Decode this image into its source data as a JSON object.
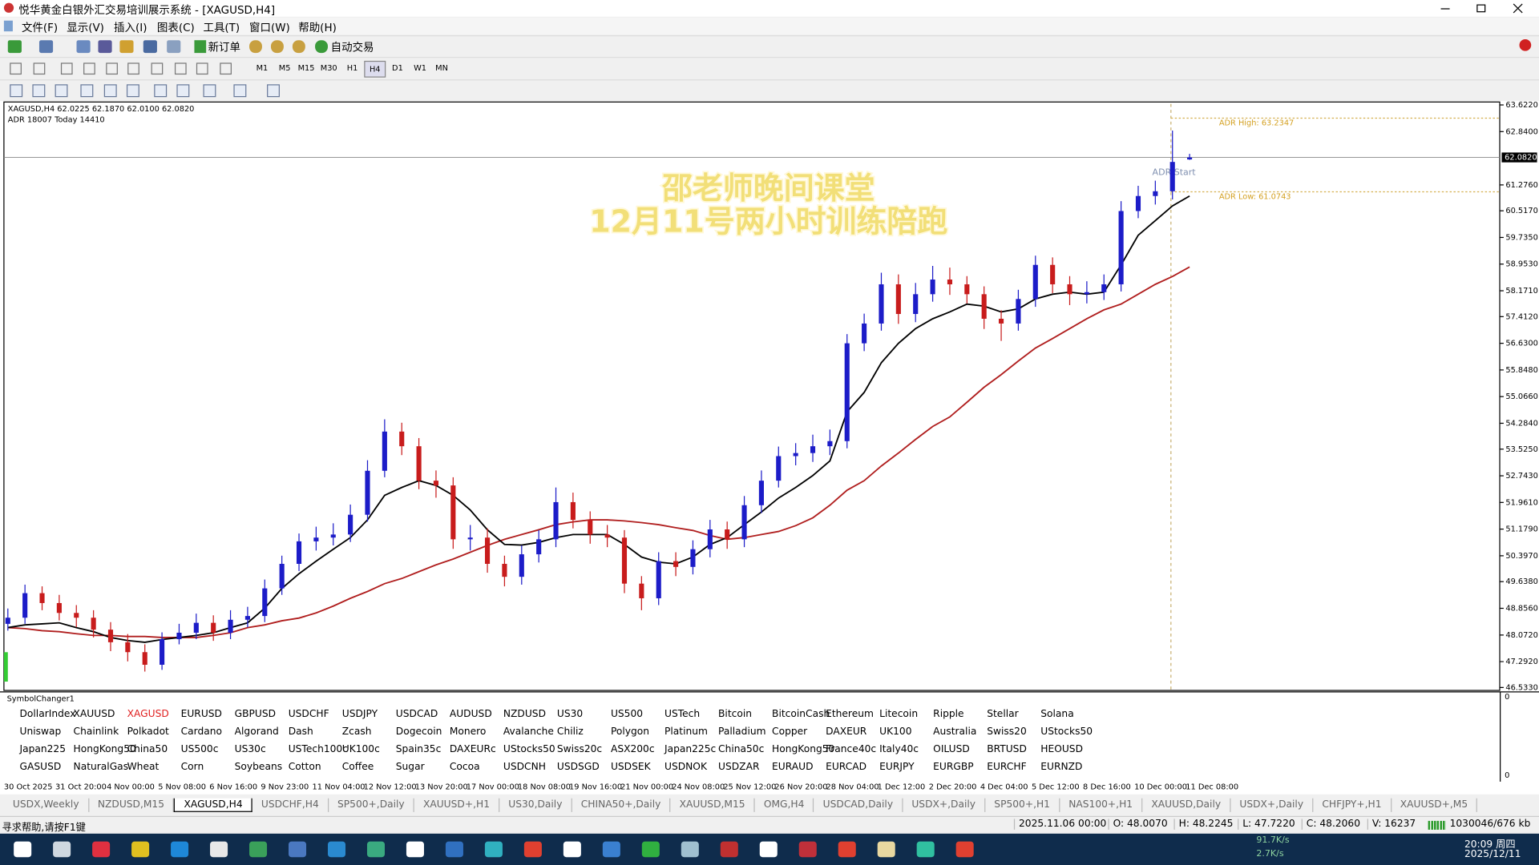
{
  "window": {
    "title": "悦华黄金白银外汇交易培训展示系统 - [XAGUSD,H4]",
    "menu": [
      "文件(F)",
      "显示(V)",
      "插入(I)",
      "图表(C)",
      "工具(T)",
      "窗口(W)",
      "帮助(H)"
    ],
    "toolbar": {
      "new_order": "新订单",
      "auto_trade": "自动交易",
      "timeframes": [
        "M1",
        "M5",
        "M15",
        "M30",
        "H1",
        "H4",
        "D1",
        "W1",
        "MN"
      ],
      "active_timeframe": 5
    }
  },
  "chart_data": {
    "type": "candlestick",
    "symbol_info": "XAGUSD,H4  62.0225 62.1870 62.0100 62.0820",
    "indicator_info": "ADR 18007  Today 14410",
    "overlay_title": [
      "邵老师晚间课堂",
      "12月11号两小时训练陪跑"
    ],
    "up_color": "#1c1cc8",
    "down_color": "#c81c1c",
    "open": [
      48.4,
      48.58,
      49.3,
      49.01,
      48.72,
      48.58,
      48.23,
      47.86,
      47.57,
      47.2,
      47.95,
      48.14,
      48.43,
      48.14,
      48.52,
      48.63,
      49.44,
      50.16,
      50.82,
      50.93,
      51.02,
      51.6,
      52.89,
      54.04,
      53.61,
      52.6,
      52.46,
      50.88,
      50.93,
      50.16,
      49.78,
      50.44,
      50.88,
      51.97,
      51.45,
      51.02,
      50.93,
      49.58,
      49.15,
      50.24,
      50.07,
      50.59,
      51.17,
      50.88,
      51.88,
      52.6,
      53.32,
      53.41,
      53.61,
      53.76,
      56.63,
      57.21,
      58.36,
      57.49,
      58.07,
      58.5,
      58.36,
      58.07,
      57.35,
      57.21,
      57.93,
      58.93,
      58.36,
      58.07,
      58.13,
      58.36,
      60.51,
      60.95,
      61.09,
      62.0225
    ],
    "high": [
      48.85,
      49.55,
      49.5,
      49.25,
      48.95,
      48.8,
      48.45,
      48.1,
      47.8,
      48.15,
      48.4,
      48.7,
      48.65,
      48.8,
      48.9,
      49.7,
      50.4,
      51.05,
      51.25,
      51.35,
      51.9,
      53.2,
      54.4,
      54.3,
      53.85,
      52.9,
      52.7,
      51.3,
      51.2,
      50.4,
      50.7,
      51.15,
      52.4,
      52.25,
      51.7,
      51.3,
      51.15,
      49.8,
      50.5,
      50.5,
      50.85,
      51.45,
      51.4,
      52.15,
      52.9,
      53.6,
      53.7,
      53.95,
      54.1,
      56.9,
      57.5,
      58.7,
      58.65,
      58.4,
      58.9,
      58.85,
      58.6,
      58.3,
      57.6,
      58.2,
      59.2,
      59.15,
      58.6,
      58.45,
      58.65,
      60.8,
      61.25,
      61.4,
      62.87,
      62.187
    ],
    "low": [
      48.2,
      48.4,
      48.8,
      48.5,
      48.3,
      48.0,
      47.6,
      47.3,
      47.0,
      47.05,
      47.8,
      47.95,
      47.9,
      47.95,
      48.3,
      48.45,
      49.25,
      49.95,
      50.55,
      50.7,
      50.8,
      51.4,
      52.7,
      53.35,
      52.35,
      52.1,
      50.6,
      50.55,
      49.9,
      49.5,
      49.55,
      50.2,
      50.65,
      51.2,
      50.75,
      50.65,
      49.3,
      48.8,
      48.95,
      49.8,
      49.85,
      50.35,
      50.6,
      50.65,
      51.65,
      52.4,
      53.05,
      53.15,
      53.35,
      53.55,
      56.4,
      57.0,
      57.2,
      57.25,
      57.85,
      58.05,
      57.8,
      57.05,
      56.7,
      57.0,
      57.7,
      58.1,
      57.75,
      57.8,
      57.9,
      58.15,
      60.3,
      60.7,
      60.85,
      62.01
    ],
    "close": [
      48.58,
      49.3,
      49.01,
      48.72,
      48.58,
      48.23,
      47.86,
      47.57,
      47.2,
      47.95,
      48.14,
      48.43,
      48.14,
      48.52,
      48.63,
      49.44,
      50.16,
      50.82,
      50.93,
      51.02,
      51.6,
      52.89,
      54.04,
      53.61,
      52.6,
      52.46,
      50.88,
      50.93,
      50.16,
      49.78,
      50.44,
      50.88,
      51.97,
      51.45,
      51.02,
      50.93,
      49.58,
      49.15,
      50.24,
      50.07,
      50.59,
      51.17,
      50.88,
      51.88,
      52.6,
      53.32,
      53.41,
      53.61,
      53.76,
      56.63,
      57.21,
      58.36,
      57.49,
      58.07,
      58.5,
      58.36,
      58.07,
      57.35,
      57.21,
      57.93,
      58.93,
      58.36,
      58.07,
      58.13,
      58.36,
      60.51,
      60.95,
      61.09,
      61.95,
      62.082
    ],
    "ma_fast": {
      "color": "#000000",
      "values": [
        48.29,
        48.37,
        48.4,
        48.43,
        48.29,
        48.17,
        48.0,
        47.91,
        47.86,
        47.94,
        48.0,
        48.06,
        48.14,
        48.29,
        48.43,
        48.86,
        49.44,
        49.87,
        50.24,
        50.59,
        50.93,
        51.45,
        52.17,
        52.4,
        52.6,
        52.46,
        52.17,
        51.74,
        51.16,
        50.73,
        50.71,
        50.79,
        50.93,
        51.02,
        51.02,
        51.02,
        50.73,
        50.36,
        50.21,
        50.16,
        50.36,
        50.73,
        50.93,
        51.31,
        51.68,
        52.09,
        52.4,
        52.75,
        53.18,
        54.62,
        55.19,
        56.06,
        56.63,
        57.06,
        57.35,
        57.55,
        57.78,
        57.72,
        57.55,
        57.64,
        57.93,
        58.07,
        58.13,
        58.07,
        58.13,
        58.93,
        59.8,
        60.23,
        60.66,
        60.95
      ]
    },
    "ma_slow": {
      "color": "#b01e1e",
      "values": [
        48.29,
        48.26,
        48.2,
        48.17,
        48.11,
        48.06,
        48.06,
        48.03,
        48.03,
        48.0,
        48.0,
        48.0,
        48.06,
        48.14,
        48.29,
        48.37,
        48.49,
        48.57,
        48.72,
        48.92,
        49.15,
        49.35,
        49.58,
        49.73,
        49.93,
        50.13,
        50.3,
        50.5,
        50.7,
        50.88,
        51.02,
        51.16,
        51.31,
        51.39,
        51.45,
        51.45,
        51.42,
        51.37,
        51.31,
        51.22,
        51.14,
        50.99,
        50.88,
        50.93,
        51.02,
        51.11,
        51.28,
        51.51,
        51.88,
        52.32,
        52.6,
        53.03,
        53.41,
        53.81,
        54.19,
        54.47,
        54.9,
        55.34,
        55.71,
        56.11,
        56.49,
        56.77,
        57.06,
        57.35,
        57.61,
        57.78,
        58.07,
        58.36,
        58.59,
        58.87
      ]
    },
    "ylim": [
      46.533,
      63.622
    ],
    "yticks": [
      {
        "value": 63.622,
        "label": "63.6220"
      },
      {
        "value": 62.84,
        "label": "62.8400"
      },
      {
        "value": 61.276,
        "label": "61.2760"
      },
      {
        "value": 60.517,
        "label": "60.5170"
      },
      {
        "value": 59.735,
        "label": "59.7350"
      },
      {
        "value": 58.953,
        "label": "58.9530"
      },
      {
        "value": 58.171,
        "label": "58.1710"
      },
      {
        "value": 57.412,
        "label": "57.4120"
      },
      {
        "value": 56.63,
        "label": "56.6300"
      },
      {
        "value": 55.848,
        "label": "55.8480"
      },
      {
        "value": 55.066,
        "label": "55.0660"
      },
      {
        "value": 54.284,
        "label": "54.2840"
      },
      {
        "value": 53.525,
        "label": "53.5250"
      },
      {
        "value": 52.743,
        "label": "52.7430"
      },
      {
        "value": 51.961,
        "label": "51.9610"
      },
      {
        "value": 51.179,
        "label": "51.1790"
      },
      {
        "value": 50.397,
        "label": "50.3970"
      },
      {
        "value": 49.638,
        "label": "49.6380"
      },
      {
        "value": 48.856,
        "label": "48.8560"
      },
      {
        "value": 48.072,
        "label": "48.0720"
      },
      {
        "value": 47.292,
        "label": "47.2920"
      },
      {
        "value": 46.533,
        "label": "46.5330"
      }
    ],
    "current_price": {
      "value": 62.082,
      "label": "62.0820"
    },
    "adr_high": {
      "value": 63.2347,
      "label": "ADR High: 63.2347"
    },
    "adr_low": {
      "value": 61.0743,
      "label": "ADR Low: 61.0743"
    },
    "adr_start": "ADR Start",
    "x_labels": [
      "30 Oct 2025",
      "31 Oct 20:00",
      "4 Nov 00:00",
      "5 Nov 08:00",
      "6 Nov 16:00",
      "9 Nov 23:00",
      "11 Nov 04:00",
      "12 Nov 12:00",
      "13 Nov 20:00",
      "17 Nov 00:00",
      "18 Nov 08:00",
      "19 Nov 16:00",
      "21 Nov 00:00",
      "24 Nov 08:00",
      "25 Nov 12:00",
      "26 Nov 20:00",
      "28 Nov 04:00",
      "1 Dec 12:00",
      "2 Dec 20:00",
      "4 Dec 04:00",
      "5 Dec 12:00",
      "8 Dec 16:00",
      "10 Dec 00:00",
      "11 Dec 08:00"
    ]
  },
  "symbol_changer": {
    "title": "SymbolChanger1",
    "scale_labels": [
      "0",
      "0"
    ],
    "selected_row": 0,
    "selected_col": 2,
    "selected_color": "#e02020",
    "buttons": [
      [
        "DollarIndex",
        "XAUUSD",
        "XAGUSD",
        "EURUSD",
        "GBPUSD",
        "USDCHF",
        "USDJPY",
        "USDCAD",
        "AUDUSD",
        "NZDUSD",
        "US30",
        "US500",
        "USTech",
        "Bitcoin",
        "BitcoinCash",
        "Ethereum",
        "Litecoin",
        "Ripple",
        "Stellar",
        "Solana"
      ],
      [
        "Uniswap",
        "Chainlink",
        "Polkadot",
        "Cardano",
        "Algorand",
        "Dash",
        "Zcash",
        "Dogecoin",
        "Monero",
        "Avalanche",
        "Chiliz",
        "Polygon",
        "Platinum",
        "Palladium",
        "Copper",
        "DAXEUR",
        "UK100",
        "Australia",
        "Swiss20",
        "UStocks50"
      ],
      [
        "Japan225",
        "HongKong50",
        "China50",
        "US500c",
        "US30c",
        "USTech100c",
        "UK100c",
        "Spain35c",
        "DAXEURc",
        "UStocks50",
        "Swiss20c",
        "ASX200c",
        "Japan225c",
        "China50c",
        "HongKong50",
        "France40c",
        "Italy40c",
        "OILUSD",
        "BRTUSD",
        "HEOUSD"
      ],
      [
        "GASUSD",
        "NaturalGas",
        "Wheat",
        "Corn",
        "Soybeans",
        "Cotton",
        "Coffee",
        "Sugar",
        "Cocoa",
        "USDCNH",
        "USDSGD",
        "USDSEK",
        "USDNOK",
        "USDZAR",
        "EURAUD",
        "EURCAD",
        "EURJPY",
        "EURGBP",
        "EURCHF",
        "EURNZD"
      ]
    ]
  },
  "tabs": {
    "items": [
      "USDX,Weekly",
      "NZDUSD,M15",
      "XAGUSD,H4",
      "USDCHF,H4",
      "SP500+,Daily",
      "XAUUSD+,H1",
      "US30,Daily",
      "CHINA50+,Daily",
      "XAUUSD,M15",
      "OMG,H4",
      "USDCAD,Daily",
      "USDX+,Daily",
      "SP500+,H1",
      "NAS100+,H1",
      "XAUUSD,Daily",
      "USDX+,Daily",
      "CHFJPY+,H1",
      "XAUUSD+,M5"
    ],
    "active": 2
  },
  "status": {
    "help": "寻求帮助,请按F1键",
    "fields": [
      "2025.11.06 00:00",
      "O: 48.0070",
      "H: 48.2245",
      "L: 47.7220",
      "C: 48.2060",
      "V: 16237"
    ],
    "memory": "1030046/676 kb"
  },
  "taskbar": {
    "net_down": "91.7K/s",
    "net_up": "2.7K/s",
    "time": "20:09 周四",
    "date": "2025/12/11"
  }
}
